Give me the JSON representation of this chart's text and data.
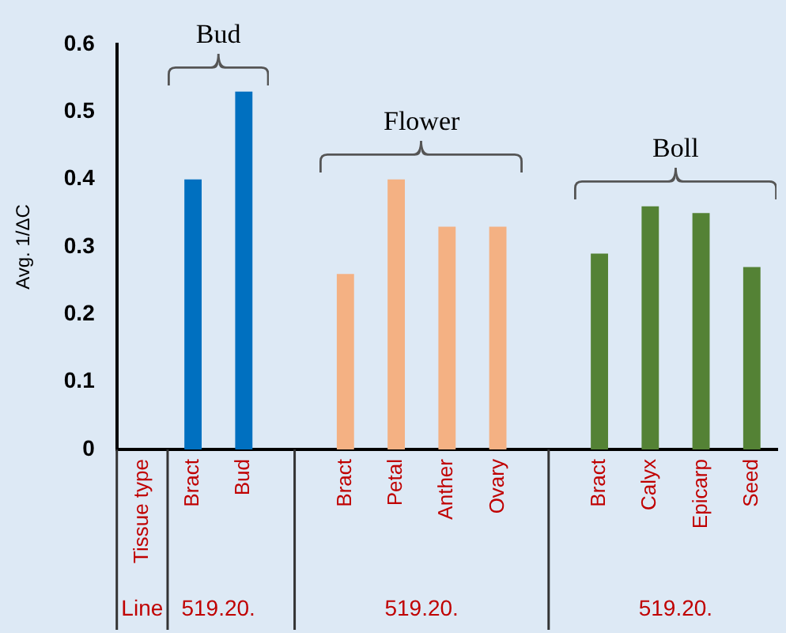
{
  "chart_data": {
    "type": "bar",
    "ylabel": "Avg. 1/ΔC",
    "categories": [
      "Tissue type",
      "Bract",
      "Bud",
      null,
      "Bract",
      "Petal",
      "Anther",
      "Ovary",
      null,
      "Bract",
      "Calyx",
      "Epicarp",
      "Seed"
    ],
    "series": [
      {
        "name": "Bud",
        "color": "#0070c0",
        "values": [
          null,
          0.4,
          0.53,
          null,
          null,
          null,
          null,
          null,
          null,
          null,
          null,
          null,
          null
        ]
      },
      {
        "name": "Flower",
        "color": "#f4b183",
        "values": [
          null,
          null,
          null,
          null,
          0.26,
          0.4,
          0.33,
          0.33,
          null,
          null,
          null,
          null,
          null
        ]
      },
      {
        "name": "Boll",
        "color": "#548235",
        "values": [
          null,
          null,
          null,
          null,
          null,
          null,
          null,
          null,
          null,
          0.29,
          0.36,
          0.35,
          0.27
        ]
      }
    ],
    "ylim": [
      0,
      0.6
    ],
    "yticks": [
      0,
      0.1,
      0.2,
      0.3,
      0.4,
      0.5,
      0.6
    ],
    "annotations": [
      "Line",
      "519.20.",
      "519.20.",
      "519.20."
    ]
  }
}
